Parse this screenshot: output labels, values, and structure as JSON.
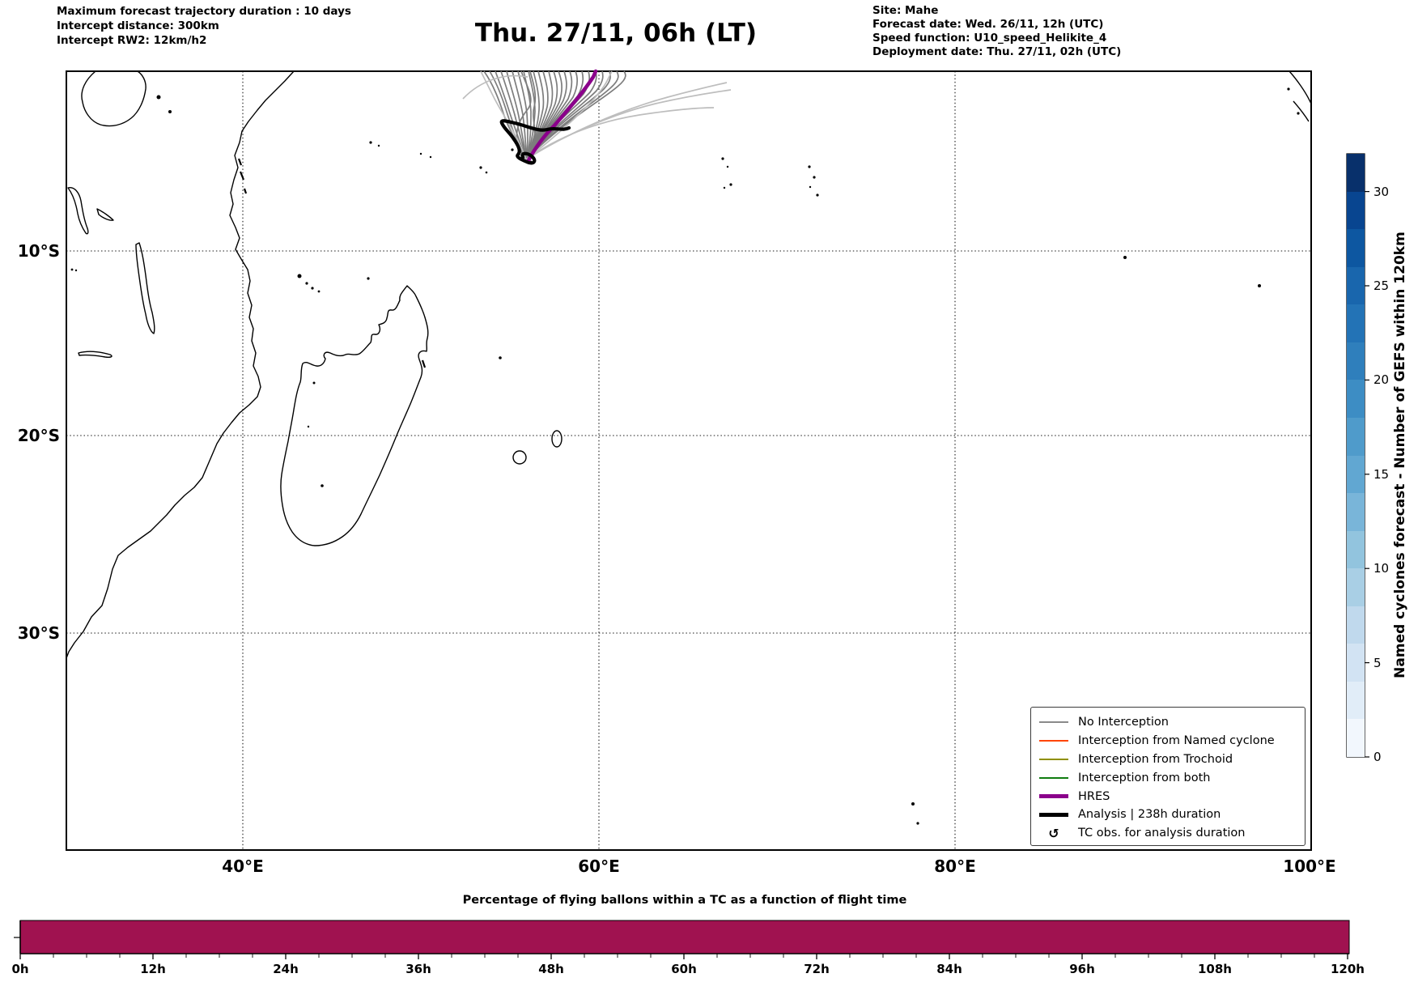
{
  "header": {
    "left_lines": [
      "Maximum forecast trajectory duration : 10 days",
      "Intercept distance: 300km",
      "Intercept RW2: 12km/h2"
    ],
    "title": "Thu. 27/11, 06h (LT)",
    "right_lines": [
      "Site: Mahe",
      "Forecast date: Wed. 26/11, 12h (UTC)",
      "Speed function: U10_speed_Helikite_4",
      "Deployment date: Thu. 27/11, 02h (UTC)"
    ]
  },
  "map": {
    "lat_ticks": [
      "10°S",
      "20°S",
      "30°S"
    ],
    "lon_ticks": [
      "40°E",
      "60°E",
      "80°E",
      "100°E"
    ],
    "legend": {
      "items": [
        {
          "label": "No Interception",
          "color": "#8a8a8a",
          "style": "thin-line"
        },
        {
          "label": "Interception from Named cyclone",
          "color": "#ff4500",
          "style": "thin-line"
        },
        {
          "label": "Interception from Trochoid",
          "color": "#8f8f00",
          "style": "thin-line"
        },
        {
          "label": "Interception from both",
          "color": "#107c10",
          "style": "thin-line"
        },
        {
          "label": "HRES",
          "color": "#8b008b",
          "style": "thick-line"
        },
        {
          "label": "Analysis | 238h duration",
          "color": "#000000",
          "style": "thick-line"
        },
        {
          "label": "TC obs. for analysis duration",
          "marker": "↺",
          "style": "marker"
        }
      ]
    }
  },
  "colorbar": {
    "label": "Named cyclones forecast - Number of GEFS within 120km",
    "ticks": [
      "0",
      "5",
      "10",
      "15",
      "20",
      "25",
      "30"
    ],
    "vmin": 0,
    "vmax": 32,
    "colormap": "Blues",
    "segment_colors": [
      "#f2f7fd",
      "#e1edf8",
      "#d2e3f3",
      "#c0d9ed",
      "#a9cfe5",
      "#92c4de",
      "#79b5d9",
      "#61a7d2",
      "#4f9bcb",
      "#3d8dc4",
      "#2f7fbc",
      "#2373b6",
      "#1966ad",
      "#0d57a1",
      "#084590",
      "#08306b"
    ]
  },
  "flight_chart": {
    "title": "Percentage of flying ballons within a TC as a function of flight time",
    "x_tick_labels": [
      "0h",
      "12h",
      "24h",
      "36h",
      "48h",
      "60h",
      "72h",
      "84h",
      "96h",
      "108h",
      "120h"
    ],
    "bar_color": "#a01250"
  },
  "chart_data": [
    {
      "type": "line",
      "subtype": "trajectory-map",
      "title": "Thu. 27/11, 06h (LT)",
      "map_extent": {
        "lon_deg_e": [
          30,
          100
        ],
        "lat_deg": [
          0,
          -40
        ]
      },
      "gridlines": {
        "lat_deg_s": [
          10,
          20,
          30
        ],
        "lon_deg_e": [
          40,
          60,
          80,
          100
        ],
        "style": "dotted"
      },
      "deployment_point": {
        "site": "Mahe",
        "approx_lon_e": 55.5,
        "approx_lat_s": 4.9
      },
      "series": [
        {
          "name": "No Interception",
          "color": "#8a8a8a",
          "count_approx": 30,
          "description": "GEFS ensemble balloon trajectories fanning north-northeast from Mahe, exiting top of map near 55-62E"
        },
        {
          "name": "Interception from Named cyclone",
          "color": "#ff4500",
          "count_approx": 0
        },
        {
          "name": "Interception from Trochoid",
          "color": "#8f8f00",
          "count_approx": 0
        },
        {
          "name": "Interception from both",
          "color": "#107c10",
          "count_approx": 0
        },
        {
          "name": "HRES",
          "color": "#8b008b",
          "count_approx": 1,
          "description": "Single thick purple trajectory from Mahe curving north-east off map top"
        },
        {
          "name": "Analysis | 238h duration",
          "color": "#000000",
          "count_approx": 1,
          "description": "Thick black analysis track looping west of Mahe with small terminal loop"
        }
      ],
      "legend_position": "lower right"
    },
    {
      "type": "colorbar",
      "label": "Named cyclones forecast - Number of GEFS within 120km",
      "range": [
        0,
        32
      ],
      "tick_values": [
        0,
        5,
        10,
        15,
        20,
        25,
        30
      ],
      "n_discrete_levels": 16,
      "colormap": "Blues"
    },
    {
      "type": "bar",
      "title": "Percentage of flying ballons within a TC as a function of flight time",
      "x_axis_hours": [
        0,
        12,
        24,
        36,
        48,
        60,
        72,
        84,
        96,
        108,
        120
      ],
      "x_range_hours": [
        0,
        120
      ],
      "y_range_percent": [
        0,
        100
      ],
      "values": "constant 100% for all flight times 0h-120h (single full-width bar)",
      "bar_color": "#a01250"
    }
  ]
}
